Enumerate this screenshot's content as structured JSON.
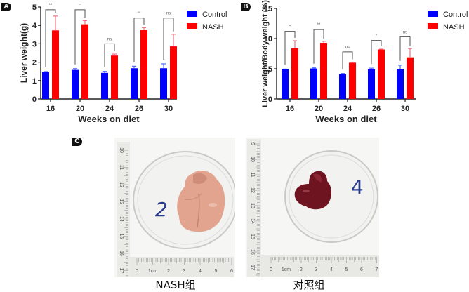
{
  "panels": {
    "a_label": "A",
    "b_label": "B",
    "c_label": "C"
  },
  "colors": {
    "control": "#0000ff",
    "nash": "#ff0000",
    "control_error": "#4a6cff",
    "nash_error": "#f07080",
    "axis": "#222222",
    "bracket": "#555555"
  },
  "chart_data": [
    {
      "id": "A",
      "type": "bar",
      "title": "",
      "xlabel": "Weeks on diet",
      "ylabel": "Liver weight(g)",
      "categories": [
        "16",
        "20",
        "24",
        "26",
        "30"
      ],
      "ylim": [
        0,
        5
      ],
      "yticks": [
        "0",
        "1",
        "2",
        "3",
        "4",
        "5"
      ],
      "ytick_values": [
        0,
        1,
        2,
        3,
        4,
        5
      ],
      "grid": false,
      "legend": "top-right",
      "series": [
        {
          "name": "Control",
          "values": [
            1.45,
            1.58,
            1.42,
            1.67,
            1.67
          ],
          "errors": [
            0.04,
            0.07,
            0.08,
            0.11,
            0.24
          ]
        },
        {
          "name": "NASH",
          "values": [
            3.73,
            4.06,
            2.36,
            3.74,
            2.86
          ],
          "errors": [
            0.78,
            0.2,
            0.08,
            0.14,
            0.66
          ]
        }
      ],
      "significance": [
        "**",
        "**",
        "ns",
        "**",
        "ns"
      ],
      "bracket_tops": [
        4.85,
        4.85,
        3.0,
        4.4,
        4.4
      ]
    },
    {
      "id": "B",
      "type": "bar",
      "title": "",
      "xlabel": "Weeks on diet",
      "ylabel": "Liver weight/Body weight (%)",
      "categories": [
        "16",
        "20",
        "24",
        "26",
        "30"
      ],
      "ylim": [
        0,
        15
      ],
      "yticks": [
        "0",
        "5",
        "10",
        "15"
      ],
      "ytick_values": [
        0,
        5,
        10,
        15
      ],
      "grid": false,
      "legend": "top-right",
      "series": [
        {
          "name": "Control",
          "values": [
            4.9,
            5.05,
            4.1,
            4.9,
            5.0
          ],
          "errors": [
            0.05,
            0.1,
            0.12,
            0.2,
            0.6
          ]
        },
        {
          "name": "NASH",
          "values": [
            8.4,
            9.3,
            6.0,
            8.2,
            6.9
          ],
          "errors": [
            1.25,
            0.25,
            0.1,
            0.05,
            1.45
          ]
        }
      ],
      "significance": [
        "*",
        "**",
        "ns",
        "*",
        "ns"
      ],
      "bracket_tops": [
        11.2,
        11.5,
        7.8,
        9.7,
        10.3
      ]
    }
  ],
  "photos": [
    {
      "id": "nash",
      "caption": "NASH组",
      "dish_number": "2",
      "ruler_vertical": [
        "10",
        "11",
        "12",
        "13",
        "14",
        "15",
        "16",
        "17"
      ],
      "ruler_horizontal": [
        "0",
        "1cm",
        "2",
        "3",
        "4",
        "5",
        "6"
      ]
    },
    {
      "id": "control",
      "caption": "对照组",
      "dish_number": "4",
      "ruler_vertical": [
        "9",
        "10",
        "11",
        "12",
        "13",
        "14",
        "15",
        "16",
        "17"
      ],
      "ruler_horizontal": [
        "0",
        "1cm",
        "2",
        "3",
        "4",
        "5",
        "6",
        "7"
      ]
    }
  ]
}
